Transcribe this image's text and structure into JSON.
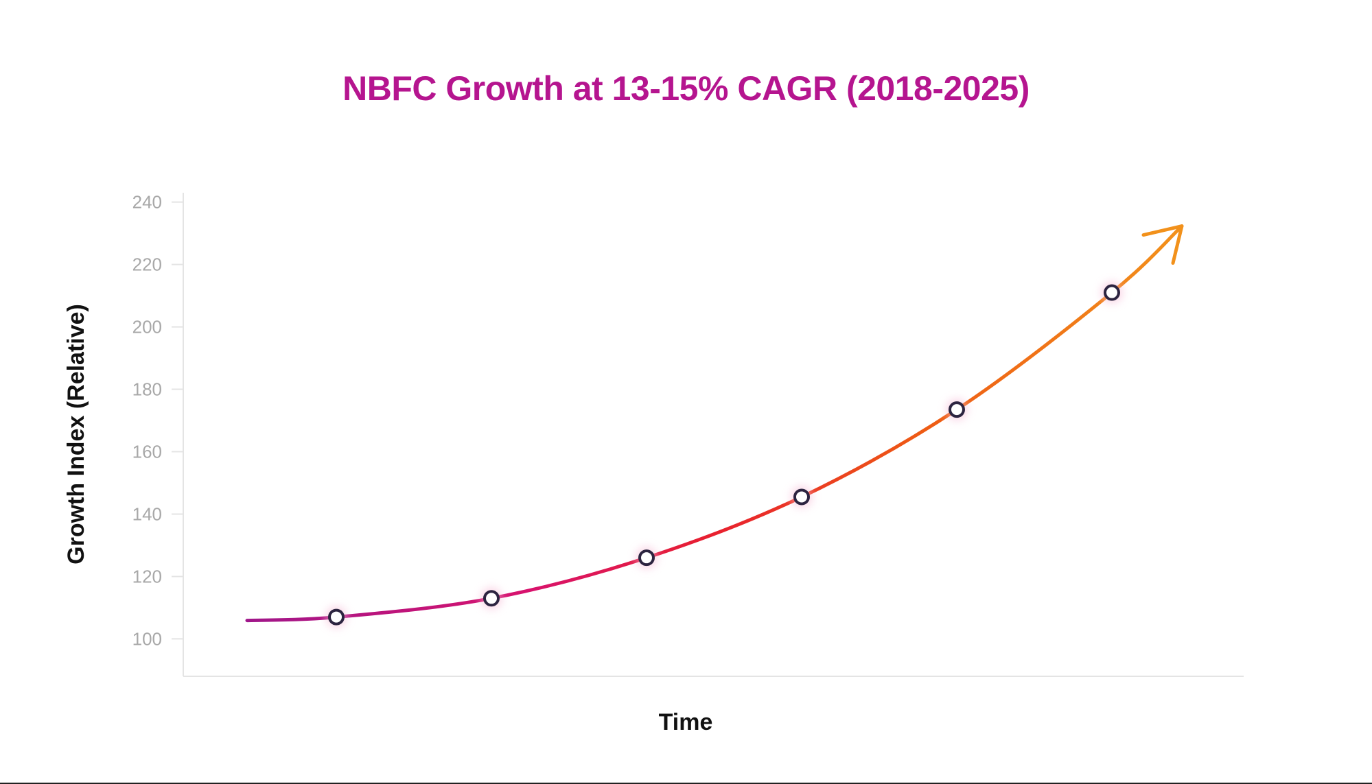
{
  "chart_data": {
    "type": "line",
    "title": "NBFC Growth at 13-15% CAGR (2018-2025)",
    "xlabel": "Time",
    "ylabel": "Growth Index (Relative)",
    "ylim": [
      88,
      243
    ],
    "yticks": [
      {
        "value": 100,
        "label": "100"
      },
      {
        "value": 120,
        "label": "120"
      },
      {
        "value": 140,
        "label": "140"
      },
      {
        "value": 160,
        "label": "160"
      },
      {
        "value": 180,
        "label": "180"
      },
      {
        "value": 200,
        "label": "200"
      },
      {
        "value": 220,
        "label": "220"
      },
      {
        "value": 240,
        "label": "240"
      }
    ],
    "series": [
      {
        "values": [
          107,
          113,
          126,
          145.5,
          173.5,
          211
        ]
      }
    ],
    "trend_arrow": true,
    "grid": false,
    "legend": "none",
    "colors": {
      "title": "#b5158f",
      "line_start": "#a0168a",
      "line_mid_1": "#d8126d",
      "line_mid_2": "#e8202f",
      "line_mid_3": "#ee5a14",
      "line_end": "#f2911b",
      "marker_stroke": "#2c2440",
      "marker_fill": "#ffffff",
      "axis": "#e4e4e4"
    }
  }
}
